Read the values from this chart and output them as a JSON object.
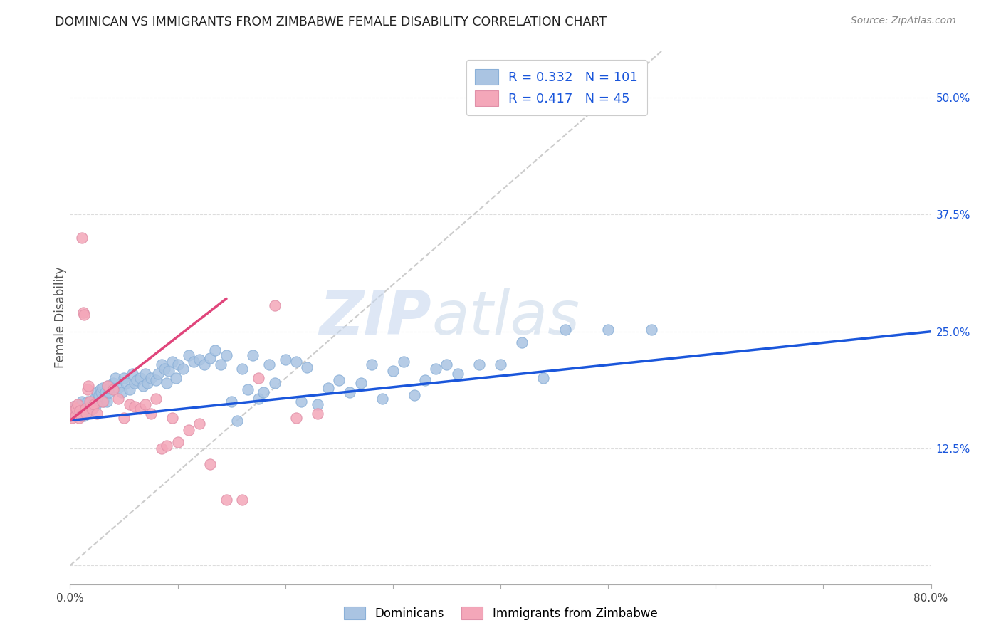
{
  "title": "DOMINICAN VS IMMIGRANTS FROM ZIMBABWE FEMALE DISABILITY CORRELATION CHART",
  "source": "Source: ZipAtlas.com",
  "ylabel": "Female Disability",
  "xlim": [
    0.0,
    0.8
  ],
  "ylim": [
    -0.02,
    0.55
  ],
  "yticks": [
    0.0,
    0.125,
    0.25,
    0.375,
    0.5
  ],
  "ytick_labels": [
    "",
    "12.5%",
    "25.0%",
    "37.5%",
    "50.0%"
  ],
  "xticks": [
    0.0,
    0.1,
    0.2,
    0.3,
    0.4,
    0.5,
    0.6,
    0.7,
    0.8
  ],
  "xtick_labels": [
    "0.0%",
    "",
    "",
    "",
    "",
    "",
    "",
    "",
    "80.0%"
  ],
  "dominicans_color": "#aac4e2",
  "zimbabwe_color": "#f4a7b9",
  "line_blue": "#1a56db",
  "line_pink": "#e0457b",
  "diagonal_color": "#cccccc",
  "watermark_zip": "ZIP",
  "watermark_atlas": "atlas",
  "legend_text1": "R = 0.332   N = 101",
  "legend_text2": "R = 0.417   N = 45",
  "dominicans_label": "Dominicans",
  "zimbabwe_label": "Immigrants from Zimbabwe",
  "blue_line_x": [
    0.0,
    0.8
  ],
  "blue_line_y": [
    0.155,
    0.25
  ],
  "pink_line_x": [
    0.0,
    0.145
  ],
  "pink_line_y": [
    0.155,
    0.285
  ],
  "diag_line_x": [
    0.0,
    0.55
  ],
  "diag_line_y": [
    0.0,
    0.55
  ],
  "dom_x": [
    0.003,
    0.005,
    0.006,
    0.007,
    0.008,
    0.009,
    0.01,
    0.011,
    0.012,
    0.013,
    0.014,
    0.015,
    0.016,
    0.017,
    0.018,
    0.019,
    0.02,
    0.021,
    0.022,
    0.023,
    0.024,
    0.025,
    0.026,
    0.027,
    0.028,
    0.029,
    0.03,
    0.031,
    0.032,
    0.033,
    0.034,
    0.035,
    0.036,
    0.037,
    0.04,
    0.042,
    0.045,
    0.048,
    0.05,
    0.052,
    0.055,
    0.058,
    0.06,
    0.062,
    0.065,
    0.068,
    0.07,
    0.072,
    0.075,
    0.08,
    0.082,
    0.085,
    0.088,
    0.09,
    0.092,
    0.095,
    0.098,
    0.1,
    0.105,
    0.11,
    0.115,
    0.12,
    0.125,
    0.13,
    0.135,
    0.14,
    0.145,
    0.15,
    0.155,
    0.16,
    0.165,
    0.17,
    0.175,
    0.18,
    0.185,
    0.19,
    0.2,
    0.21,
    0.215,
    0.22,
    0.23,
    0.24,
    0.25,
    0.26,
    0.27,
    0.28,
    0.29,
    0.3,
    0.31,
    0.32,
    0.33,
    0.34,
    0.35,
    0.36,
    0.38,
    0.4,
    0.42,
    0.44,
    0.46,
    0.5,
    0.54
  ],
  "dom_y": [
    0.17,
    0.165,
    0.17,
    0.163,
    0.168,
    0.165,
    0.172,
    0.175,
    0.168,
    0.16,
    0.17,
    0.165,
    0.175,
    0.168,
    0.165,
    0.175,
    0.172,
    0.168,
    0.17,
    0.178,
    0.172,
    0.185,
    0.178,
    0.182,
    0.188,
    0.185,
    0.19,
    0.175,
    0.18,
    0.185,
    0.175,
    0.192,
    0.185,
    0.19,
    0.195,
    0.2,
    0.19,
    0.185,
    0.2,
    0.195,
    0.188,
    0.205,
    0.195,
    0.198,
    0.2,
    0.192,
    0.205,
    0.195,
    0.2,
    0.198,
    0.205,
    0.215,
    0.21,
    0.195,
    0.208,
    0.218,
    0.2,
    0.215,
    0.21,
    0.225,
    0.218,
    0.22,
    0.215,
    0.222,
    0.23,
    0.215,
    0.225,
    0.175,
    0.155,
    0.21,
    0.188,
    0.225,
    0.178,
    0.185,
    0.215,
    0.195,
    0.22,
    0.218,
    0.175,
    0.212,
    0.172,
    0.19,
    0.198,
    0.185,
    0.195,
    0.215,
    0.178,
    0.208,
    0.218,
    0.182,
    0.198,
    0.21,
    0.215,
    0.205,
    0.215,
    0.215,
    0.238,
    0.2,
    0.252,
    0.252,
    0.252
  ],
  "zim_x": [
    0.001,
    0.002,
    0.003,
    0.004,
    0.005,
    0.006,
    0.007,
    0.008,
    0.009,
    0.01,
    0.011,
    0.012,
    0.013,
    0.014,
    0.015,
    0.016,
    0.017,
    0.018,
    0.02,
    0.022,
    0.025,
    0.03,
    0.035,
    0.04,
    0.045,
    0.05,
    0.055,
    0.06,
    0.065,
    0.07,
    0.075,
    0.08,
    0.085,
    0.09,
    0.095,
    0.1,
    0.11,
    0.12,
    0.13,
    0.145,
    0.16,
    0.175,
    0.19,
    0.21,
    0.23
  ],
  "zim_y": [
    0.162,
    0.158,
    0.17,
    0.165,
    0.16,
    0.168,
    0.172,
    0.158,
    0.165,
    0.16,
    0.35,
    0.27,
    0.268,
    0.168,
    0.162,
    0.188,
    0.192,
    0.175,
    0.168,
    0.172,
    0.162,
    0.175,
    0.192,
    0.188,
    0.178,
    0.158,
    0.172,
    0.17,
    0.168,
    0.172,
    0.162,
    0.178,
    0.125,
    0.128,
    0.158,
    0.132,
    0.145,
    0.152,
    0.108,
    0.07,
    0.07,
    0.2,
    0.278,
    0.158,
    0.162
  ]
}
